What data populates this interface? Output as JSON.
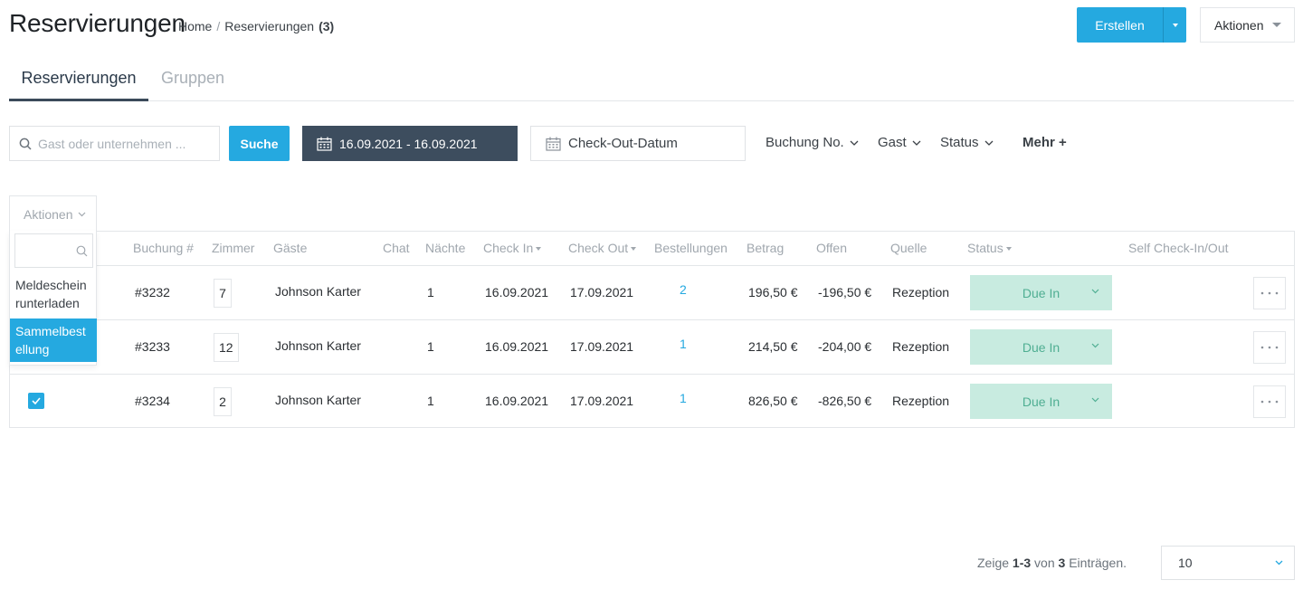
{
  "header": {
    "title": "Reservierungen",
    "breadcrumb": {
      "home": "Home",
      "separator": "/",
      "current": "Reservierungen",
      "count": "(3)"
    },
    "create_label": "Erstellen",
    "actions_label": "Aktionen"
  },
  "tabs": [
    {
      "label": "Reservierungen",
      "active": true
    },
    {
      "label": "Gruppen",
      "active": false
    }
  ],
  "filters": {
    "search_placeholder": "Gast oder unternehmen ...",
    "search_button": "Suche",
    "date_range": "16.09.2021 - 16.09.2021",
    "checkout_placeholder": "Check-Out-Datum",
    "dropdowns": [
      "Buchung No.",
      "Gast",
      "Status"
    ],
    "more_label": "Mehr +"
  },
  "bulk_actions": {
    "label": "Aktionen",
    "items": [
      "Meldeschein runterladen",
      "Sammelbestellung"
    ],
    "selected_index": 1
  },
  "table": {
    "columns": [
      "Buchung #",
      "Zimmer",
      "Gäste",
      "Chat",
      "Nächte",
      "Check In",
      "Check Out",
      "Bestellungen",
      "Betrag",
      "Offen",
      "Quelle",
      "Status",
      "Self Check-In/Out"
    ],
    "rows": [
      {
        "checked": false,
        "booking": "#3232",
        "room": "7",
        "guest": "Johnson Karter",
        "nights": "1",
        "check_in": "16.09.2021",
        "check_out": "17.09.2021",
        "orders": "2",
        "amount": "196,50 €",
        "open": "-196,50 €",
        "source": "Rezeption",
        "status": "Due In"
      },
      {
        "checked": false,
        "booking": "#3233",
        "room": "12",
        "guest": "Johnson Karter",
        "nights": "1",
        "check_in": "16.09.2021",
        "check_out": "17.09.2021",
        "orders": "1",
        "amount": "214,50 €",
        "open": "-204,00 €",
        "source": "Rezeption",
        "status": "Due In"
      },
      {
        "checked": true,
        "booking": "#3234",
        "room": "2",
        "guest": "Johnson Karter",
        "nights": "1",
        "check_in": "16.09.2021",
        "check_out": "17.09.2021",
        "orders": "1",
        "amount": "826,50 €",
        "open": "-826,50 €",
        "source": "Rezeption",
        "status": "Due In"
      }
    ]
  },
  "pagination": {
    "prefix": "Zeige",
    "range": "1-3",
    "of": "von",
    "total": "3",
    "suffix": "Einträgen.",
    "page_size": "10"
  },
  "colors": {
    "accent": "#25a9e0",
    "dark_filter": "#3d4d5e",
    "status_bg": "#c8ebe0",
    "status_text": "#4fae92"
  }
}
